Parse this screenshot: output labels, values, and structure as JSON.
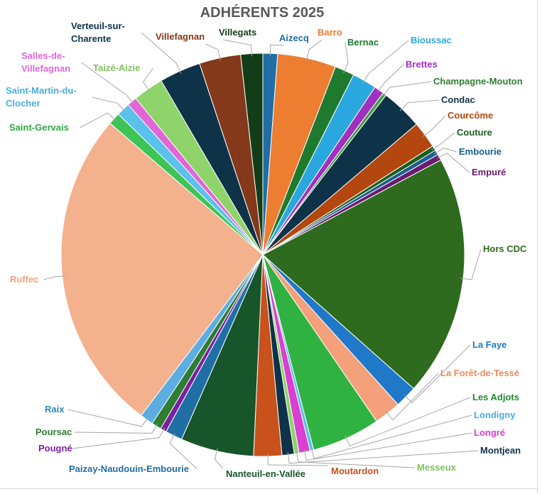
{
  "chart_data": {
    "type": "pie",
    "title": "ADHÉRENTS 2025",
    "slices": [
      {
        "name": "Aizecq",
        "value": 1.2,
        "color": "#1f6fa5",
        "label_color": "#1f6fa5"
      },
      {
        "name": "Barro",
        "value": 4.8,
        "color": "#ed7d31",
        "label_color": "#ed7d31"
      },
      {
        "name": "Bernac",
        "value": 1.6,
        "color": "#1e7a2e",
        "label_color": "#1e7a2e"
      },
      {
        "name": "Bioussac",
        "value": 2.0,
        "color": "#2aa7df",
        "label_color": "#2aa7df"
      },
      {
        "name": "Brettes",
        "value": 0.8,
        "color": "#a12fbf",
        "label_color": "#a12fbf"
      },
      {
        "name": "Champagne-Mouton",
        "value": 0.3,
        "color": "#43a047",
        "label_color": "#2e7d32"
      },
      {
        "name": "Condac",
        "value": 3.4,
        "color": "#0e3348",
        "label_color": "#0e3348"
      },
      {
        "name": "Courcôme",
        "value": 2.2,
        "color": "#b3470f",
        "label_color": "#b3470f"
      },
      {
        "name": "Couture",
        "value": 0.4,
        "color": "#1b5e20",
        "label_color": "#1b5e20"
      },
      {
        "name": "Embourie",
        "value": 0.4,
        "color": "#1b5e8f",
        "label_color": "#1b5e8f"
      },
      {
        "name": "Empuré",
        "value": 0.5,
        "color": "#6a1b6e",
        "label_color": "#6a1b6e"
      },
      {
        "name": "Hors CDC",
        "value": 19.8,
        "color": "#2e6b1f",
        "label_color": "#2e6b1f"
      },
      {
        "name": "La Faye",
        "value": 1.8,
        "color": "#1f78c8",
        "label_color": "#1f78c8"
      },
      {
        "name": "La Forêt-de-Tessé",
        "value": 2.2,
        "color": "#f4a07a",
        "label_color": "#f08a5c"
      },
      {
        "name": "Les Adjots",
        "value": 5.6,
        "color": "#2fb241",
        "label_color": "#1e8a2e"
      },
      {
        "name": "Londigny",
        "value": 0.3,
        "color": "#5bc0eb",
        "label_color": "#4aaee0"
      },
      {
        "name": "Longré",
        "value": 0.9,
        "color": "#d93fd0",
        "label_color": "#d93fd0"
      },
      {
        "name": "Messeux",
        "value": 0.4,
        "color": "#8fd36b",
        "label_color": "#7cc35a"
      },
      {
        "name": "Montjean",
        "value": 1.0,
        "color": "#0e3348",
        "label_color": "#0e3348"
      },
      {
        "name": "Moutardon",
        "value": 2.3,
        "color": "#c8511c",
        "label_color": "#c8511c"
      },
      {
        "name": "Nanteuil-en-Vallée",
        "value": 6.0,
        "color": "#17562a",
        "label_color": "#17562a"
      },
      {
        "name": "Paizay-Naudouin-Embourie",
        "value": 1.4,
        "color": "#1f6fa5",
        "label_color": "#1f6fa5"
      },
      {
        "name": "Pougné",
        "value": 0.5,
        "color": "#7b1fa2",
        "label_color": "#7b1fa2"
      },
      {
        "name": "Poursac",
        "value": 0.8,
        "color": "#2e7d32",
        "label_color": "#2e7d32"
      },
      {
        "name": "Raix",
        "value": 1.1,
        "color": "#5dade2",
        "label_color": "#2e86c1"
      },
      {
        "name": "Ruffec",
        "value": 26.6,
        "color": "#f4b18e",
        "label_color": "#f4a07a"
      },
      {
        "name": "Saint-Gervais",
        "value": 1.0,
        "color": "#3cc455",
        "label_color": "#2eaa44"
      },
      {
        "name": "Saint-Martin-du-Clocher",
        "value": 1.1,
        "color": "#5bc0eb",
        "label_color": "#4aaee0"
      },
      {
        "name": "Salles-de-Villefagnan",
        "value": 0.8,
        "color": "#e066d8",
        "label_color": "#e066d8"
      },
      {
        "name": "Taizé-Aizie",
        "value": 2.5,
        "color": "#8fd36b",
        "label_color": "#7cc35a"
      },
      {
        "name": "Verteuil-sur-Charente",
        "value": 3.4,
        "color": "#0e3348",
        "label_color": "#0e3348"
      },
      {
        "name": "Villefagnan",
        "value": 3.4,
        "color": "#84391a",
        "label_color": "#84391a"
      },
      {
        "name": "Villegats",
        "value": 1.8,
        "color": "#123d18",
        "label_color": "#123d18"
      }
    ]
  }
}
